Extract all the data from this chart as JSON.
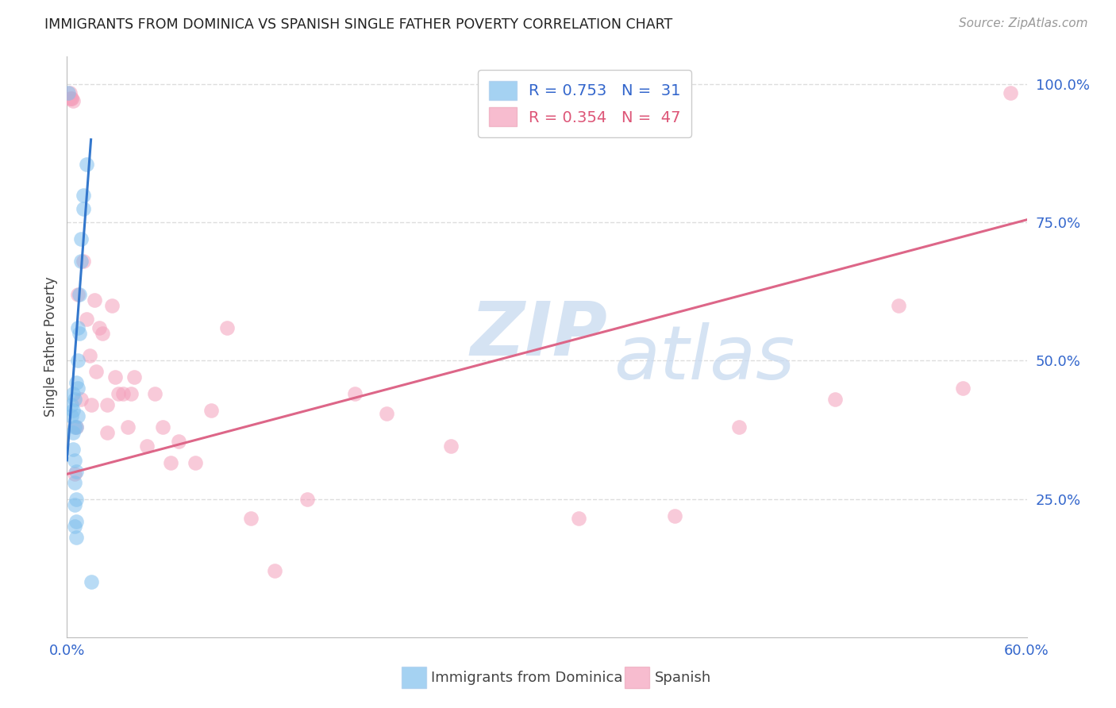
{
  "title": "IMMIGRANTS FROM DOMINICA VS SPANISH SINGLE FATHER POVERTY CORRELATION CHART",
  "source": "Source: ZipAtlas.com",
  "xlabel_blue": "Immigrants from Dominica",
  "xlabel_pink": "Spanish",
  "ylabel": "Single Father Poverty",
  "xlim": [
    0.0,
    0.6
  ],
  "ylim": [
    0.0,
    1.05
  ],
  "xticks": [
    0.0,
    0.1,
    0.2,
    0.3,
    0.4,
    0.5,
    0.6
  ],
  "xtick_labels": [
    "0.0%",
    "",
    "",
    "",
    "",
    "",
    "60.0%"
  ],
  "yticks_right": [
    0.25,
    0.5,
    0.75,
    1.0
  ],
  "ytick_labels_right": [
    "25.0%",
    "50.0%",
    "75.0%",
    "100.0%"
  ],
  "grid_color": "#dddddd",
  "blue_color": "#7fbfed",
  "pink_color": "#f4a0bb",
  "blue_line_color": "#3377cc",
  "pink_line_color": "#dd6688",
  "legend_label_blue": "R = 0.753   N =  31",
  "legend_label_pink": "R = 0.354   N =  47",
  "watermark_zip": "ZIP",
  "watermark_atlas": "atlas",
  "blue_dots_x": [
    0.001,
    0.003,
    0.003,
    0.004,
    0.004,
    0.004,
    0.004,
    0.005,
    0.005,
    0.005,
    0.005,
    0.005,
    0.005,
    0.006,
    0.006,
    0.006,
    0.006,
    0.006,
    0.006,
    0.007,
    0.007,
    0.007,
    0.007,
    0.008,
    0.008,
    0.009,
    0.009,
    0.01,
    0.01,
    0.012,
    0.015
  ],
  "blue_dots_y": [
    0.985,
    0.42,
    0.4,
    0.44,
    0.41,
    0.37,
    0.34,
    0.43,
    0.38,
    0.32,
    0.28,
    0.24,
    0.2,
    0.46,
    0.38,
    0.3,
    0.25,
    0.21,
    0.18,
    0.56,
    0.5,
    0.45,
    0.4,
    0.62,
    0.55,
    0.72,
    0.68,
    0.8,
    0.775,
    0.855,
    0.1
  ],
  "pink_dots_x": [
    0.002,
    0.002,
    0.003,
    0.003,
    0.004,
    0.005,
    0.006,
    0.007,
    0.009,
    0.01,
    0.012,
    0.014,
    0.015,
    0.017,
    0.018,
    0.02,
    0.022,
    0.025,
    0.025,
    0.028,
    0.03,
    0.032,
    0.035,
    0.038,
    0.04,
    0.042,
    0.05,
    0.055,
    0.06,
    0.065,
    0.07,
    0.08,
    0.09,
    0.1,
    0.115,
    0.13,
    0.15,
    0.18,
    0.2,
    0.24,
    0.32,
    0.38,
    0.42,
    0.48,
    0.52,
    0.56,
    0.59
  ],
  "pink_dots_y": [
    0.985,
    0.975,
    0.975,
    0.975,
    0.97,
    0.295,
    0.38,
    0.62,
    0.43,
    0.68,
    0.575,
    0.51,
    0.42,
    0.61,
    0.48,
    0.56,
    0.55,
    0.42,
    0.37,
    0.6,
    0.47,
    0.44,
    0.44,
    0.38,
    0.44,
    0.47,
    0.345,
    0.44,
    0.38,
    0.315,
    0.355,
    0.315,
    0.41,
    0.56,
    0.215,
    0.12,
    0.25,
    0.44,
    0.405,
    0.345,
    0.215,
    0.22,
    0.38,
    0.43,
    0.6,
    0.45,
    0.985
  ],
  "blue_trend_x": [
    0.0,
    0.015
  ],
  "blue_trend_y": [
    0.32,
    0.9
  ],
  "pink_trend_x": [
    0.0,
    0.6
  ],
  "pink_trend_y": [
    0.295,
    0.755
  ]
}
